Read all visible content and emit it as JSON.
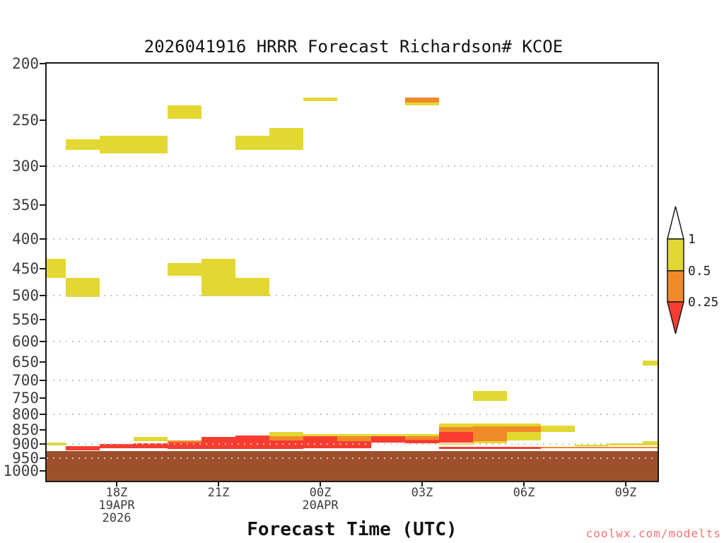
{
  "title": "2026041916 HRRR Forecast Richardson# KCOE",
  "watermark": "coolwx.com/modelts",
  "xaxis": {
    "label": "Forecast Time (UTC)",
    "ticks": [
      {
        "label": "18Z",
        "t": 2,
        "sub": [
          "19APR",
          "2026"
        ]
      },
      {
        "label": "21Z",
        "t": 5,
        "sub": []
      },
      {
        "label": "00Z",
        "t": 8,
        "sub": [
          "20APR"
        ]
      },
      {
        "label": "03Z",
        "t": 11,
        "sub": []
      },
      {
        "label": "06Z",
        "t": 14,
        "sub": []
      },
      {
        "label": "09Z",
        "t": 17,
        "sub": []
      }
    ]
  },
  "yaxis": {
    "ticks": [
      200,
      250,
      300,
      350,
      400,
      450,
      500,
      550,
      600,
      650,
      700,
      750,
      800,
      850,
      900,
      950,
      1000
    ],
    "grid_pressures": [
      300,
      400,
      500,
      600,
      700,
      800,
      900,
      950
    ]
  },
  "colorbar": {
    "labels": [
      {
        "text": "1",
        "boundary": "white-yellow"
      },
      {
        "text": "0.5",
        "boundary": "yellow-orange"
      },
      {
        "text": "0.25",
        "boundary": "orange-red"
      }
    ],
    "segments": [
      {
        "color": "#ffffff",
        "range": "> 1",
        "shape": "arrow-up"
      },
      {
        "color": "#e3d832",
        "range": "0.5 - 1",
        "shape": "rect"
      },
      {
        "color": "#f08a28",
        "range": "0.25 - 0.5",
        "shape": "rect"
      },
      {
        "color": "#f93c30",
        "range": "< 0.25",
        "shape": "arrow-down"
      }
    ]
  },
  "chart_data": {
    "type": "heatmap",
    "title": "2026041916 HRRR Forecast Richardson# KCOE",
    "xlabel": "Forecast Time (UTC)",
    "x_unit": "forecast hour after init 16Z 19APR2026 (axis spans 16Z 19APR to 10Z 20APR)",
    "y_unit": "pressure hPa, log scale, 200 top to ~1040 bottom",
    "xlim": [
      0,
      18
    ],
    "ylim": [
      200,
      1040
    ],
    "palette": {
      "y": "#e3d832",
      "o": "#f08a28",
      "r": "#f93c30"
    },
    "categories": {
      "y": "Richardson 0.5-1",
      "o": "Richardson 0.25-0.5",
      "r": "Richardson < 0.25"
    },
    "ground": {
      "p_top": 924,
      "color": "#9e502c"
    },
    "cells": [
      [
        0.5,
        1.5,
        270,
        281,
        "y"
      ],
      [
        1.5,
        3.5,
        266,
        285,
        "y"
      ],
      [
        3.5,
        4.5,
        236,
        249,
        "y"
      ],
      [
        5.5,
        6.5,
        266,
        281,
        "y"
      ],
      [
        6.5,
        7.5,
        258,
        281,
        "y"
      ],
      [
        7.5,
        8.5,
        229,
        232,
        "y"
      ],
      [
        10.5,
        11.5,
        229,
        233,
        "o"
      ],
      [
        10.5,
        11.5,
        233,
        236,
        "y"
      ],
      [
        -0.1,
        0.5,
        432,
        466,
        "y"
      ],
      [
        0.5,
        1.5,
        466,
        503,
        "y"
      ],
      [
        3.5,
        4.5,
        440,
        462,
        "y"
      ],
      [
        4.5,
        5.5,
        432,
        502,
        "y"
      ],
      [
        5.5,
        6.5,
        466,
        502,
        "y"
      ],
      [
        12.5,
        13.5,
        729,
        758,
        "y"
      ],
      [
        17.5,
        18.1,
        646,
        660,
        "y"
      ],
      [
        -0.1,
        0.5,
        894,
        904,
        "y"
      ],
      [
        0.5,
        1.5,
        906,
        921,
        "r"
      ],
      [
        1.5,
        2.5,
        899,
        914,
        "r"
      ],
      [
        2.5,
        3.5,
        874,
        889,
        "y"
      ],
      [
        2.5,
        3.5,
        896,
        914,
        "r"
      ],
      [
        3.5,
        4.5,
        886,
        894,
        "o"
      ],
      [
        3.5,
        4.5,
        894,
        916,
        "r"
      ],
      [
        4.5,
        5.5,
        874,
        916,
        "r"
      ],
      [
        5.5,
        6.5,
        869,
        916,
        "r"
      ],
      [
        6.5,
        7.5,
        857,
        872,
        "y"
      ],
      [
        6.5,
        7.5,
        872,
        886,
        "o"
      ],
      [
        6.5,
        7.5,
        886,
        916,
        "r"
      ],
      [
        7.5,
        8.5,
        864,
        872,
        "y"
      ],
      [
        7.5,
        8.5,
        872,
        914,
        "r"
      ],
      [
        8.5,
        9.5,
        864,
        872,
        "y"
      ],
      [
        8.5,
        9.5,
        872,
        889,
        "o"
      ],
      [
        8.5,
        9.5,
        889,
        914,
        "r"
      ],
      [
        9.5,
        10.5,
        864,
        872,
        "y"
      ],
      [
        9.5,
        10.5,
        872,
        894,
        "r"
      ],
      [
        10.5,
        11.5,
        864,
        872,
        "y"
      ],
      [
        10.5,
        11.5,
        872,
        884,
        "o"
      ],
      [
        10.5,
        11.5,
        884,
        897,
        "r"
      ],
      [
        11.5,
        12.5,
        829,
        840,
        "y"
      ],
      [
        11.5,
        12.5,
        840,
        857,
        "o"
      ],
      [
        11.5,
        12.5,
        857,
        894,
        "r"
      ],
      [
        11.5,
        12.5,
        896,
        901,
        "y"
      ],
      [
        11.5,
        14.5,
        909,
        916,
        "r"
      ],
      [
        12.5,
        13.5,
        829,
        838,
        "y"
      ],
      [
        12.5,
        13.5,
        838,
        889,
        "o"
      ],
      [
        12.5,
        13.5,
        889,
        896,
        "y"
      ],
      [
        13.5,
        14.5,
        829,
        838,
        "y"
      ],
      [
        13.5,
        14.5,
        838,
        857,
        "o"
      ],
      [
        13.5,
        14.5,
        857,
        886,
        "y"
      ],
      [
        14.5,
        15.5,
        836,
        857,
        "y"
      ],
      [
        14.5,
        18.1,
        909,
        914,
        "o"
      ],
      [
        15.5,
        16.5,
        901,
        906,
        "y"
      ],
      [
        16.5,
        17.5,
        896,
        904,
        "y"
      ],
      [
        17.5,
        18.1,
        889,
        904,
        "y"
      ]
    ]
  }
}
